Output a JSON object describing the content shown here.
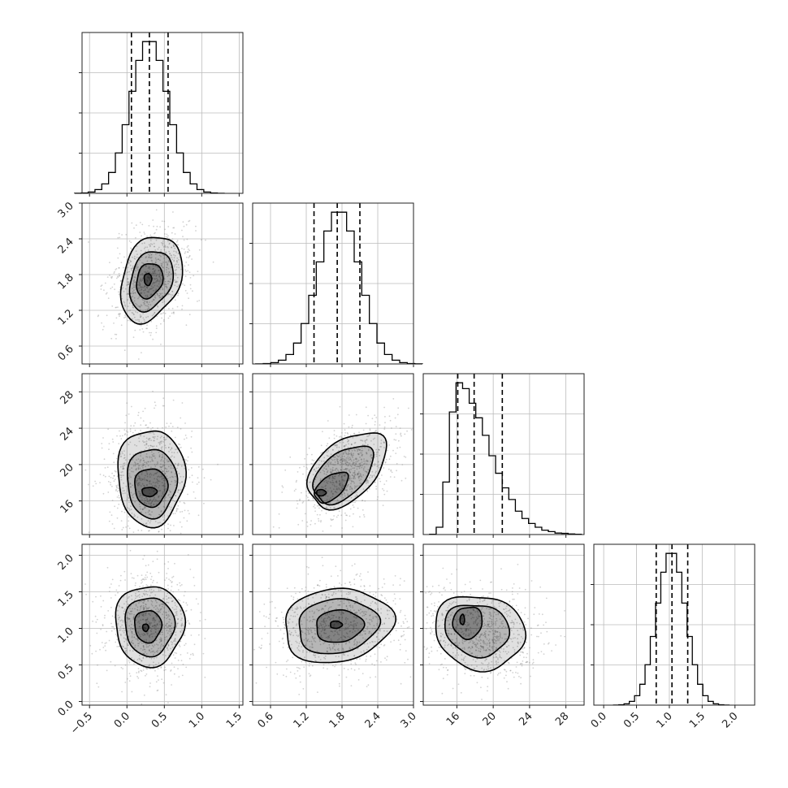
{
  "chart_data": {
    "type": "corner",
    "n_params": 4,
    "grid": true,
    "colors": {
      "line": "#000000",
      "density": "#000000",
      "points": "#7f7f7f",
      "grid": "#bbbbbb"
    },
    "params": [
      {
        "id": "p1",
        "xlim": [
          -0.6,
          1.55
        ],
        "ylim": [
          1.2,
          3.0
        ],
        "xticks": [
          -0.5,
          0.0,
          0.5,
          1.0,
          1.5
        ],
        "xtick_labels": [
          "−0.5",
          "0.0",
          "0.5",
          "1.0",
          "1.5"
        ],
        "yticks": [
          0.6,
          1.2,
          1.8,
          2.4,
          3.0
        ],
        "ytick_labels": [
          "0.6",
          "1.2",
          "1.8",
          "2.4",
          "3.0"
        ],
        "mean": 0.3,
        "sd": 0.25,
        "quantiles": [
          0.06,
          0.3,
          0.55
        ]
      },
      {
        "id": "p2",
        "xlim": [
          0.3,
          3.0
        ],
        "ylim": [
          0.3,
          3.0
        ],
        "xticks": [
          0.6,
          1.2,
          1.8,
          2.4,
          3.0
        ],
        "xtick_labels": [
          "0.6",
          "1.2",
          "1.8",
          "2.4",
          "3.0"
        ],
        "yticks": [
          16,
          20,
          24,
          28
        ],
        "ytick_labels": [
          "16",
          "20",
          "24",
          "28"
        ],
        "mean": 1.75,
        "sd": 0.35,
        "quantiles": [
          1.33,
          1.72,
          2.1
        ]
      },
      {
        "id": "p3",
        "xlim": [
          12.3,
          30.0
        ],
        "ylim": [
          12.3,
          30.0
        ],
        "xticks": [
          16,
          20,
          24,
          28
        ],
        "xtick_labels": [
          "16",
          "20",
          "24",
          "28"
        ],
        "yticks": [
          0.0,
          0.5,
          1.0,
          1.5,
          2.0
        ],
        "ytick_labels": [
          "0.0",
          "0.5",
          "1.0",
          "1.5",
          "2.0"
        ],
        "quantiles": [
          16.1,
          17.9,
          21.0
        ],
        "hist_values": [
          1,
          25,
          180,
          420,
          520,
          500,
          450,
          400,
          340,
          270,
          210,
          160,
          120,
          80,
          55,
          38,
          25,
          15,
          10,
          5,
          4,
          2,
          1
        ]
      },
      {
        "id": "p4",
        "xlim": [
          -0.15,
          2.3
        ],
        "ylim": [
          -0.05,
          2.15
        ],
        "xticks": [
          0.0,
          0.5,
          1.0,
          1.5,
          2.0
        ],
        "xtick_labels": [
          "0.0",
          "0.5",
          "1.0",
          "1.5",
          "2.0"
        ],
        "mean": 1.03,
        "sd": 0.22,
        "quantiles": [
          0.8,
          1.04,
          1.28
        ]
      }
    ],
    "pairs": [
      {
        "row": 1,
        "col": 0,
        "levels": [
          {
            "cx": 0.32,
            "cy": 1.73,
            "rx": 0.38,
            "ry": 0.75,
            "rot": -0.35
          },
          {
            "cx": 0.32,
            "cy": 1.7,
            "rx": 0.27,
            "ry": 0.52,
            "rot": -0.35
          },
          {
            "cx": 0.3,
            "cy": 1.7,
            "rx": 0.17,
            "ry": 0.3,
            "rot": -0.3
          },
          {
            "cx": 0.28,
            "cy": 1.72,
            "rx": 0.05,
            "ry": 0.1,
            "rot": 0
          }
        ]
      },
      {
        "row": 2,
        "col": 0,
        "levels": [
          {
            "cx": 0.32,
            "cy": 18.6,
            "rx": 0.45,
            "ry": 5.3,
            "rot": 0
          },
          {
            "cx": 0.33,
            "cy": 18.0,
            "rx": 0.33,
            "ry": 3.8,
            "rot": 0
          },
          {
            "cx": 0.32,
            "cy": 17.5,
            "rx": 0.22,
            "ry": 2.1,
            "rot": 0
          },
          {
            "cx": 0.3,
            "cy": 17.0,
            "rx": 0.1,
            "ry": 0.5,
            "rot": 0
          }
        ]
      },
      {
        "row": 2,
        "col": 1,
        "levels": [
          {
            "cx": 1.88,
            "cy": 19.4,
            "rx": 0.78,
            "ry": 3.1,
            "rot": 0.75
          },
          {
            "cx": 1.82,
            "cy": 18.9,
            "rx": 0.6,
            "ry": 2.3,
            "rot": 0.75
          },
          {
            "cx": 1.62,
            "cy": 17.5,
            "rx": 0.33,
            "ry": 1.2,
            "rot": 0.7
          },
          {
            "cx": 1.45,
            "cy": 16.9,
            "rx": 0.08,
            "ry": 0.35,
            "rot": 0
          }
        ]
      },
      {
        "row": 3,
        "col": 0,
        "levels": [
          {
            "cx": 0.3,
            "cy": 1.04,
            "rx": 0.46,
            "ry": 0.55,
            "rot": 0
          },
          {
            "cx": 0.3,
            "cy": 1.03,
            "rx": 0.33,
            "ry": 0.4,
            "rot": 0
          },
          {
            "cx": 0.28,
            "cy": 1.03,
            "rx": 0.18,
            "ry": 0.22,
            "rot": 0
          },
          {
            "cx": 0.25,
            "cy": 1.01,
            "rx": 0.04,
            "ry": 0.05,
            "rot": 0
          }
        ]
      },
      {
        "row": 3,
        "col": 1,
        "levels": [
          {
            "cx": 1.72,
            "cy": 1.04,
            "rx": 0.92,
            "ry": 0.5,
            "rot": 0.15
          },
          {
            "cx": 1.72,
            "cy": 1.03,
            "rx": 0.68,
            "ry": 0.37,
            "rot": 0.15
          },
          {
            "cx": 1.75,
            "cy": 1.03,
            "rx": 0.4,
            "ry": 0.22,
            "rot": 0.1
          },
          {
            "cx": 1.7,
            "cy": 1.05,
            "rx": 0.1,
            "ry": 0.05,
            "rot": 0
          }
        ]
      },
      {
        "row": 3,
        "col": 2,
        "levels": [
          {
            "cx": 18.5,
            "cy": 0.95,
            "rx": 5.0,
            "ry": 0.5,
            "rot": -0.25
          },
          {
            "cx": 18.2,
            "cy": 0.98,
            "rx": 3.6,
            "ry": 0.35,
            "rot": -0.25
          },
          {
            "cx": 17.2,
            "cy": 1.08,
            "rx": 1.6,
            "ry": 0.22,
            "rot": -0.35
          },
          {
            "cx": 16.6,
            "cy": 1.12,
            "rx": 0.25,
            "ry": 0.07,
            "rot": 0
          }
        ]
      }
    ]
  }
}
